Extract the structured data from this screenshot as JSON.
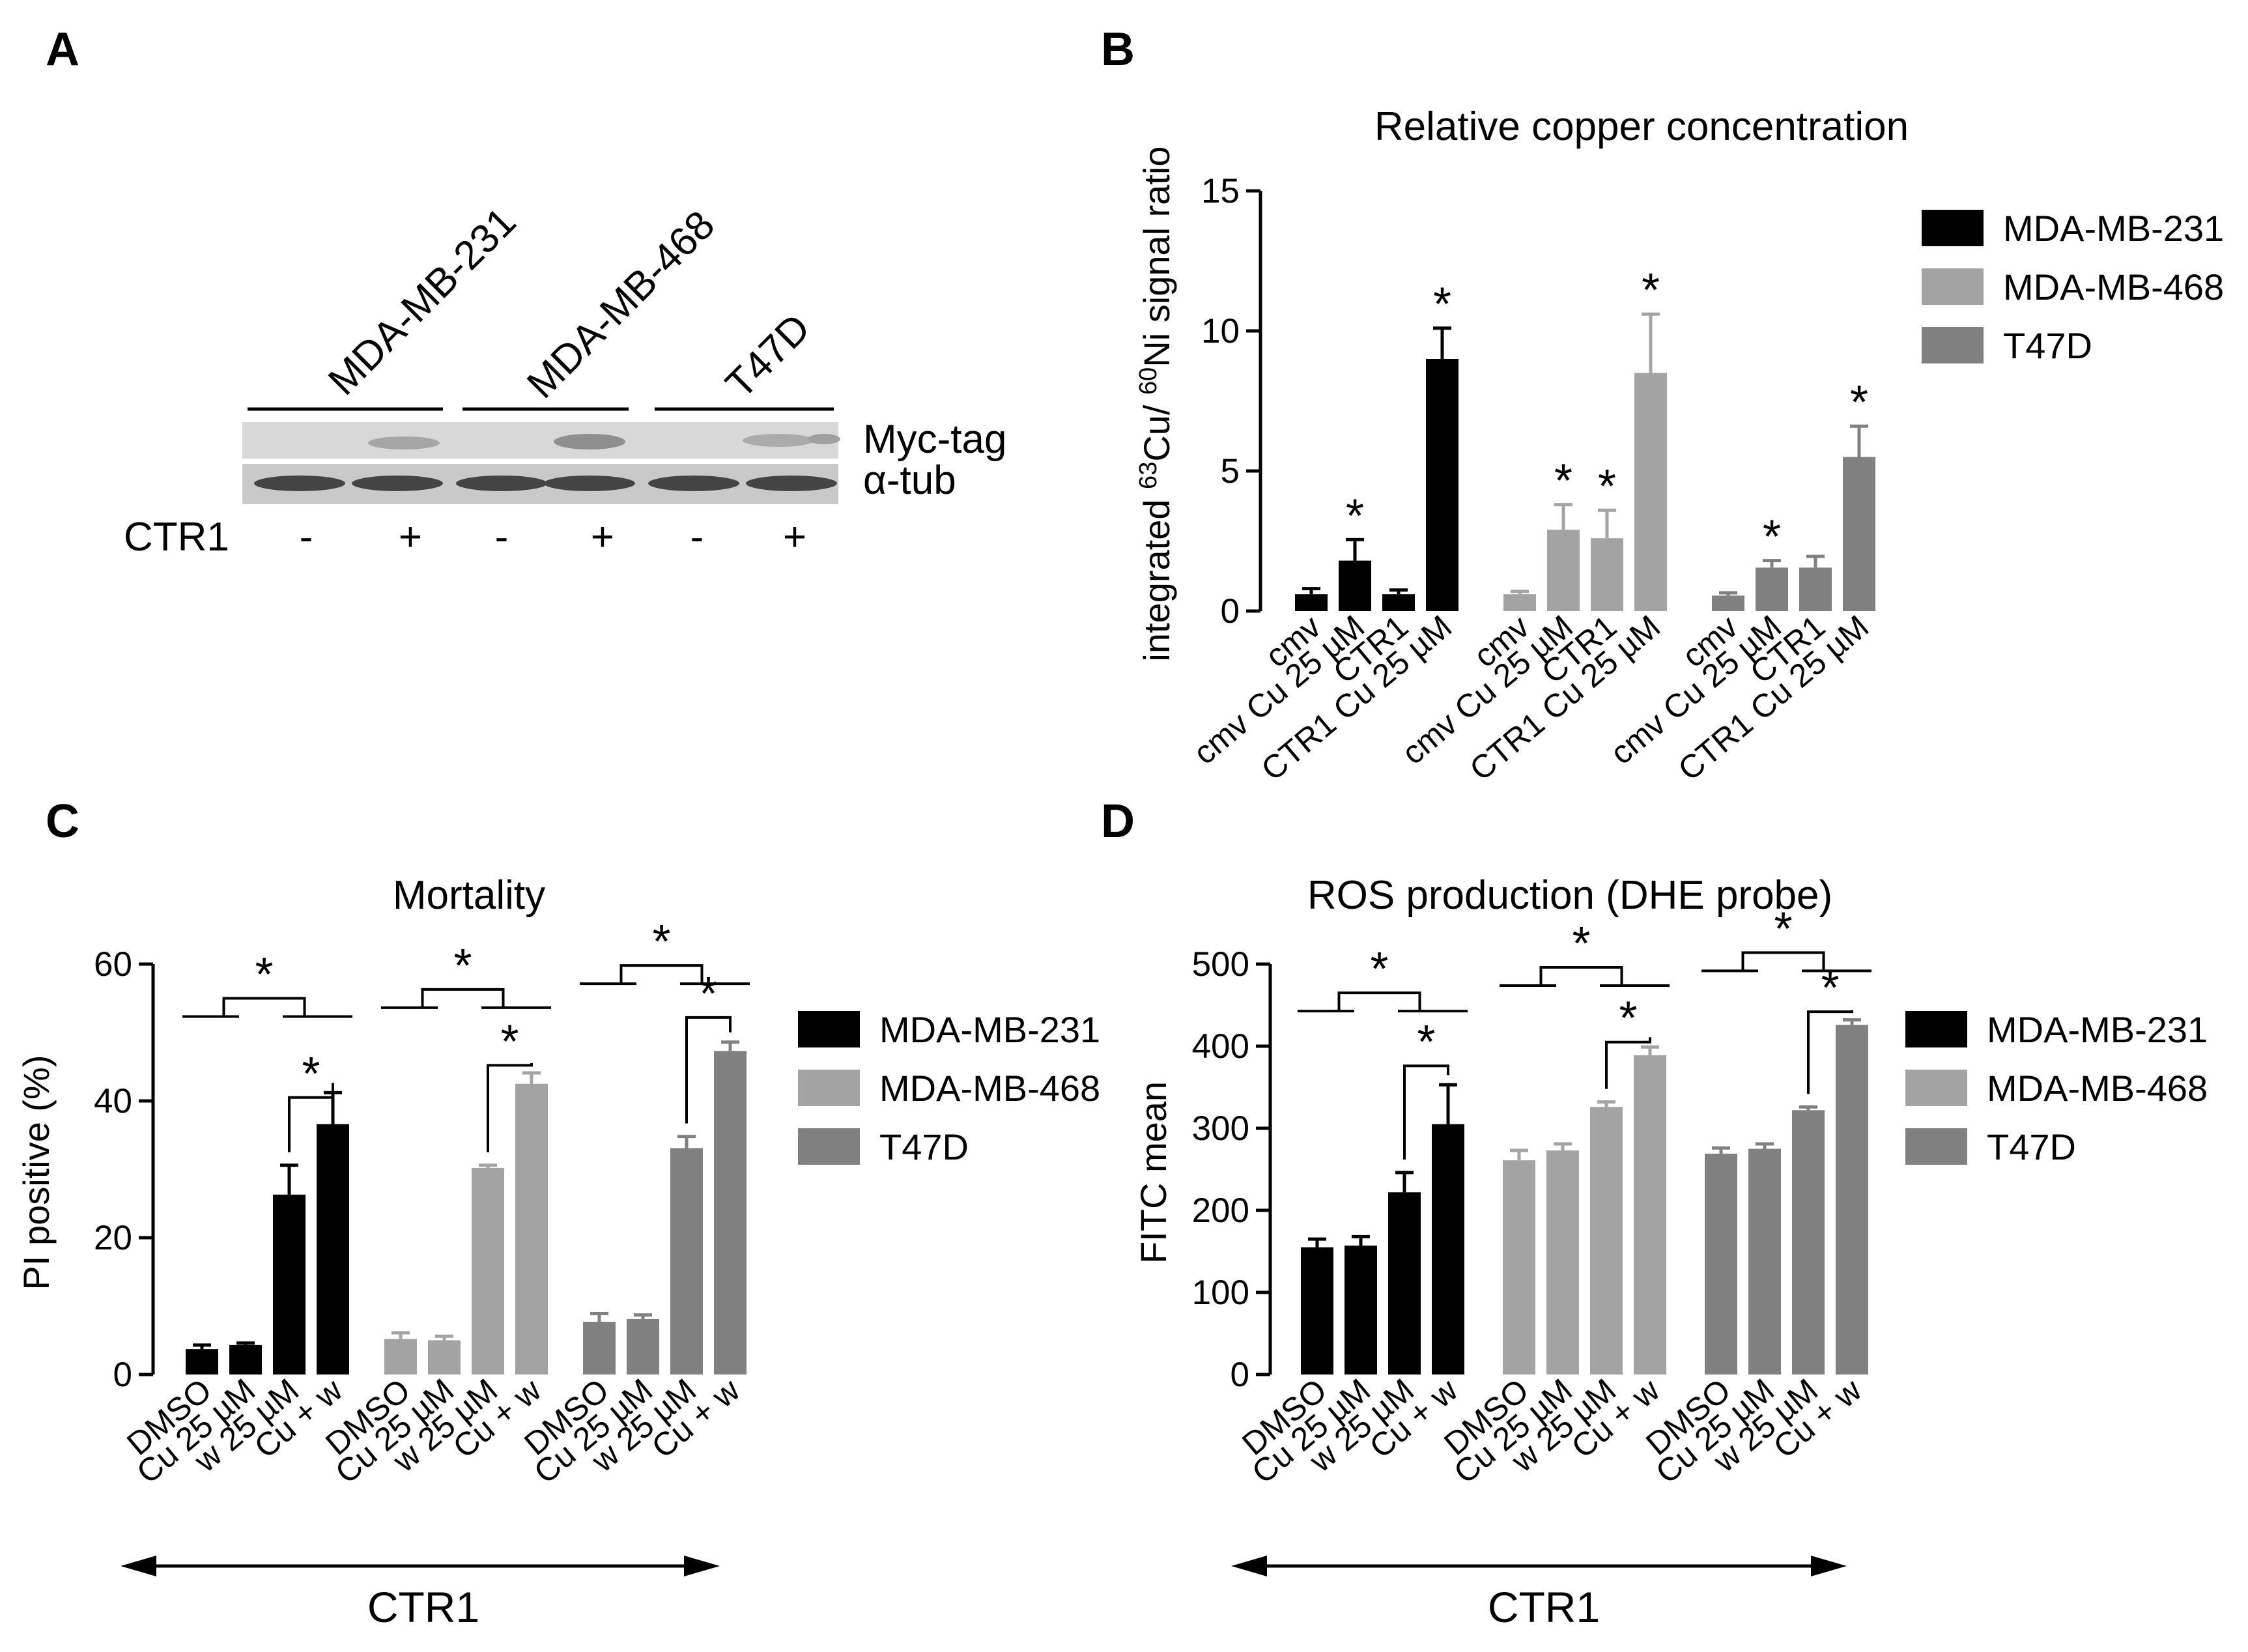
{
  "panels": {
    "A": {
      "label": "A",
      "lane_groups": [
        "MDA-MB-231",
        "MDA-MB-468",
        "T47D"
      ],
      "bands": [
        "Myc-tag",
        "α-tub"
      ],
      "row_label": "CTR1",
      "lane_signs": [
        "-",
        "+",
        "-",
        "+",
        "-",
        "+"
      ]
    },
    "B": {
      "label": "B"
    },
    "C": {
      "label": "C",
      "bottom_label": "CTR1"
    },
    "D": {
      "label": "D",
      "bottom_label": "CTR1"
    }
  },
  "colors": {
    "MDA-MB-231": "#000000",
    "MDA-MB-468": "#a3a3a3",
    "T47D": "#808080"
  },
  "chart_data": [
    {
      "id": "B",
      "type": "bar",
      "title": "Relative copper concentration",
      "ylabel": "integrated ⁶³Cu/ ⁶⁰Ni signal ratio",
      "ylim": [
        0,
        15
      ],
      "yticks": [
        0,
        5,
        10,
        15
      ],
      "categories": [
        "cmv",
        "cmv Cu 25 µM",
        "CTR1",
        "CTR1 Cu 25 µM"
      ],
      "legend": "right",
      "series": [
        {
          "name": "MDA-MB-231",
          "color": "#000000",
          "values": [
            0.6,
            1.8,
            0.6,
            9.0
          ],
          "errors": [
            0.2,
            0.75,
            0.15,
            1.1
          ],
          "stars": [
            false,
            true,
            false,
            true
          ]
        },
        {
          "name": "MDA-MB-468",
          "color": "#a3a3a3",
          "values": [
            0.6,
            2.9,
            2.6,
            8.5
          ],
          "errors": [
            0.1,
            0.9,
            1.0,
            2.1
          ],
          "stars": [
            false,
            true,
            true,
            true
          ]
        },
        {
          "name": "T47D",
          "color": "#808080",
          "values": [
            0.55,
            1.55,
            1.55,
            5.5
          ],
          "errors": [
            0.1,
            0.25,
            0.4,
            1.1
          ],
          "stars": [
            false,
            true,
            false,
            true
          ]
        }
      ]
    },
    {
      "id": "C",
      "type": "bar",
      "title": "Mortality",
      "ylabel": "PI positive (%)",
      "ylim": [
        0,
        60
      ],
      "yticks": [
        0,
        20,
        40,
        60
      ],
      "categories": [
        "DMSO",
        "Cu 25 µM",
        "w 25 µM",
        "Cu + w"
      ],
      "legend": "right",
      "series": [
        {
          "name": "MDA-MB-231",
          "color": "#000000",
          "values": [
            3.7,
            4.3,
            26.3,
            36.6
          ],
          "errors": [
            0.6,
            0.3,
            4.3,
            4.6
          ]
        },
        {
          "name": "MDA-MB-468",
          "color": "#a3a3a3",
          "values": [
            5.2,
            5.0,
            30.2,
            42.5
          ],
          "errors": [
            0.9,
            0.6,
            0.4,
            1.6
          ]
        },
        {
          "name": "T47D",
          "color": "#808080",
          "values": [
            7.7,
            8.1,
            33.1,
            47.3
          ],
          "errors": [
            1.2,
            0.6,
            1.7,
            1.3
          ]
        }
      ],
      "significance": [
        {
          "series": 0,
          "upper": 55.0,
          "lower": 40.5
        },
        {
          "series": 1,
          "upper": 56.3,
          "lower": 45.2
        },
        {
          "series": 2,
          "upper": 59.8,
          "lower": 52.2
        }
      ],
      "star": "*"
    },
    {
      "id": "D",
      "type": "bar",
      "title": "ROS production (DHE probe)",
      "ylabel": "FITC mean",
      "ylim": [
        0,
        500
      ],
      "yticks": [
        0,
        100,
        200,
        300,
        400,
        500
      ],
      "categories": [
        "DMSO",
        "Cu 25 µM",
        "w 25 µM",
        "Cu + w"
      ],
      "legend": "right",
      "series": [
        {
          "name": "MDA-MB-231",
          "color": "#000000",
          "values": [
            155,
            157,
            222,
            305
          ],
          "errors": [
            10,
            11,
            24,
            48
          ]
        },
        {
          "name": "MDA-MB-468",
          "color": "#a3a3a3",
          "values": [
            261,
            273,
            326,
            389
          ],
          "errors": [
            12,
            8,
            6,
            10
          ]
        },
        {
          "name": "T47D",
          "color": "#808080",
          "values": [
            269,
            275,
            322,
            426
          ],
          "errors": [
            7,
            6,
            4,
            6
          ]
        }
      ],
      "significance": [
        {
          "series": 0,
          "upper": 465,
          "lower": 376
        },
        {
          "series": 1,
          "upper": 496,
          "lower": 405
        },
        {
          "series": 2,
          "upper": 514,
          "lower": 442
        }
      ],
      "star": "*"
    }
  ]
}
